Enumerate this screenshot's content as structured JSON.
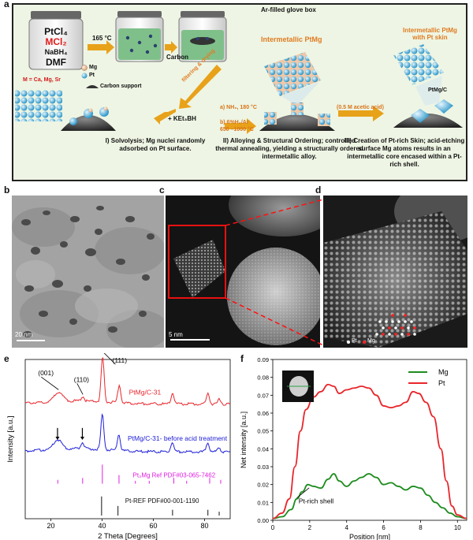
{
  "panels": {
    "a": {
      "letter": "a",
      "glovebox": "Ar-filled glove box",
      "reagents": [
        "PtCl₄",
        "MCl₂",
        "NaBH₄",
        "DMF"
      ],
      "temp": "165 °C",
      "carbon": "Carbon",
      "legend": {
        "mg": "Mg",
        "pt": "Pt",
        "support": "Carbon support"
      },
      "m_def": "M = Ca, Mg, Sr",
      "filtering": "filtering & drying",
      "ket3bh": "+ KEt₃BH",
      "conditions": [
        "a) NH₃, 180 °C",
        "b) 6%H₂/Ar",
        "650 –1000 °C"
      ],
      "acetic": "(0.5 M acetic acid)",
      "intermetallic": "Intermetallic PtMg",
      "intermetallic_skin": [
        "Intermetallic PtMg",
        "with Pt skin"
      ],
      "ptmgc": "PtMg/C",
      "step1": [
        "I) Solvolysis; Mg nuclei randomly",
        "adsorbed on Pt surface."
      ],
      "step2": [
        "II) Alloying & Structural Ordering; controlled",
        "thermal annealing, yielding a structurally ordered",
        "intermetallic alloy."
      ],
      "step3": [
        "III) Creation of Pt-rich Skin; acid-etching",
        "surface Mg atoms results in an",
        "intermetallic core encased within a Pt-",
        "rich shell."
      ]
    },
    "b": {
      "letter": "b",
      "scale": "20 nm"
    },
    "c": {
      "letter": "c",
      "scale": "5 nm"
    },
    "d": {
      "letter": "d",
      "legend_pt": "Pt",
      "legend_mg": "Mg"
    },
    "e": {
      "letter": "e"
    },
    "f": {
      "letter": "f"
    }
  },
  "chart_data": [
    {
      "type": "line",
      "xlabel": "2 Theta [Degrees]",
      "ylabel": "Intensity [a.u.]",
      "xlim": [
        10,
        90
      ],
      "xticks": [
        20,
        40,
        60,
        80
      ],
      "peaks": [
        "(111)",
        "(001)",
        "(110)"
      ],
      "series": [
        {
          "name": "PtMg/C-31",
          "color": "#e8262b",
          "offset": 0.72,
          "peaks": [
            [
              23,
              0.06
            ],
            [
              32.5,
              0.03
            ],
            [
              40.2,
              0.28
            ],
            [
              46.7,
              0.11
            ],
            [
              67.5,
              0.07
            ],
            [
              81.3,
              0.07
            ],
            [
              85.8,
              0.03
            ]
          ]
        },
        {
          "name": "PtMg/C-31- before acid treatment",
          "color": "#2020d8",
          "offset": 0.42,
          "peaks": [
            [
              22.6,
              0.06
            ],
            [
              32.3,
              0.04
            ],
            [
              40.1,
              0.22
            ],
            [
              46.5,
              0.1
            ],
            [
              67.4,
              0.06
            ],
            [
              81.2,
              0.06
            ],
            [
              85.6,
              0.03
            ]
          ]
        }
      ],
      "references": [
        {
          "name": "Pt₃Mg Ref PDF#03-065-7462",
          "color": "#e020e0",
          "offset": 0.22,
          "sticks": [
            [
              22.7,
              0.2
            ],
            [
              32.4,
              0.3
            ],
            [
              40.1,
              1.0
            ],
            [
              46.6,
              0.45
            ],
            [
              53,
              0.15
            ],
            [
              58.4,
              0.15
            ],
            [
              68,
              0.3
            ],
            [
              73,
              0.15
            ],
            [
              82,
              0.3
            ],
            [
              86.3,
              0.2
            ]
          ]
        },
        {
          "name": "Pt-REF PDF#00-001-1190",
          "color": "#111111",
          "offset": 0.02,
          "sticks": [
            [
              39.8,
              1.0
            ],
            [
              46.2,
              0.5
            ],
            [
              67.5,
              0.3
            ],
            [
              81.3,
              0.3
            ],
            [
              85.7,
              0.2
            ]
          ]
        }
      ]
    },
    {
      "type": "line",
      "xlabel": "Position [nm]",
      "ylabel": "Net intensity [a.u.]",
      "xlim": [
        0,
        10.5
      ],
      "ylim": [
        0,
        0.09
      ],
      "xticks": [
        0,
        2,
        4,
        6,
        8,
        10
      ],
      "yticks": [
        0.0,
        0.01,
        0.02,
        0.03,
        0.04,
        0.05,
        0.06,
        0.07,
        0.08,
        0.09
      ],
      "legend_position": "top-right",
      "annotation": "Pt-rich shell",
      "series": [
        {
          "name": "Mg",
          "color": "#1e8c1e",
          "x": [
            0,
            0.5,
            1,
            1.3,
            1.6,
            1.9,
            2.2,
            2.6,
            3.0,
            3.3,
            3.6,
            4.0,
            4.4,
            4.8,
            5.2,
            5.6,
            6.0,
            6.4,
            6.8,
            7.2,
            7.6,
            8.0,
            8.4,
            8.8,
            9.2,
            9.6,
            10.0,
            10.5
          ],
          "y": [
            0.001,
            0.002,
            0.006,
            0.012,
            0.016,
            0.02,
            0.019,
            0.018,
            0.023,
            0.026,
            0.022,
            0.019,
            0.022,
            0.024,
            0.026,
            0.024,
            0.02,
            0.021,
            0.019,
            0.017,
            0.019,
            0.018,
            0.014,
            0.01,
            0.007,
            0.004,
            0.002,
            0.001
          ]
        },
        {
          "name": "Pt",
          "color": "#e8262b",
          "x": [
            0,
            0.5,
            0.9,
            1.2,
            1.5,
            1.8,
            2.2,
            2.6,
            3.0,
            3.3,
            3.6,
            4.0,
            4.4,
            4.8,
            5.2,
            5.6,
            6.0,
            6.4,
            6.8,
            7.2,
            7.6,
            7.9,
            8.3,
            8.7,
            9.1,
            9.4,
            9.7,
            10.0,
            10.5
          ],
          "y": [
            0.001,
            0.004,
            0.012,
            0.03,
            0.05,
            0.062,
            0.069,
            0.072,
            0.076,
            0.075,
            0.071,
            0.073,
            0.074,
            0.075,
            0.074,
            0.07,
            0.064,
            0.063,
            0.064,
            0.066,
            0.072,
            0.071,
            0.066,
            0.058,
            0.04,
            0.022,
            0.008,
            0.003,
            0.001
          ]
        }
      ]
    }
  ]
}
